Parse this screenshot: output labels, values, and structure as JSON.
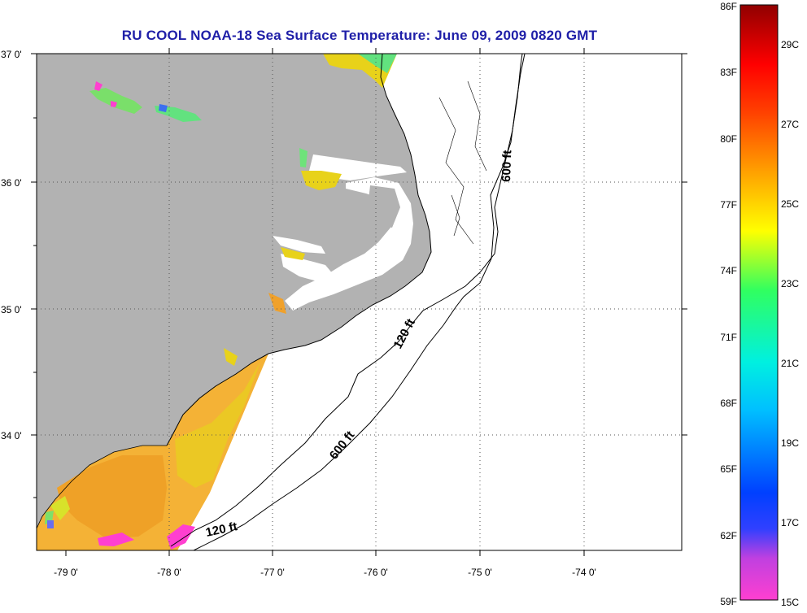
{
  "title": "RU COOL  NOAA-18  Sea Surface Temperature:  June 09, 2009 0820 GMT",
  "axes": {
    "lat_labels": [
      "37 0'",
      "36 0'",
      "35 0'",
      "34 0'"
    ],
    "lon_labels": [
      "-79 0'",
      "-78 0'",
      "-77 0'",
      "-76 0'",
      "-75 0'",
      "-74 0'"
    ]
  },
  "contours": {
    "c120_label": "120 ft",
    "c600_label": "600 ft"
  },
  "colorbar": {
    "fahrenheit_labels": [
      "86F",
      "83F",
      "80F",
      "77F",
      "74F",
      "71F",
      "68F",
      "65F",
      "62F",
      "59F"
    ],
    "celsius_labels": [
      "29C",
      "27C",
      "25C",
      "23C",
      "21C",
      "19C",
      "17C",
      "15C"
    ],
    "range_f": [
      59,
      86
    ],
    "range_c": [
      15,
      30
    ]
  },
  "colors": {
    "title": "#1f1fa8",
    "land": "#b2b2b2",
    "water_no_data": "#ffffff",
    "sst_warm": "#f2a11f",
    "sst_mid": "#e8d21a"
  }
}
